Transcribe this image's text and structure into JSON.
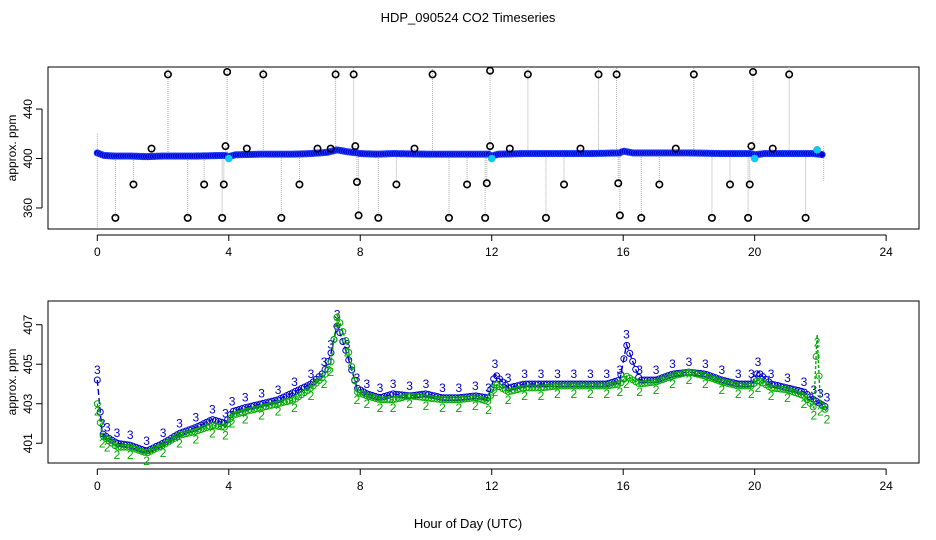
{
  "title": "HDP_090524  CO2 Timeseries",
  "xlabel": "Hour of Day (UTC)",
  "colors": {
    "series1": "#0000cc",
    "series2": "#00aa00",
    "outlier": "#000000",
    "highlight": "#00ccff",
    "whisker": "#aaaaaa"
  },
  "chart_data": [
    {
      "type": "scatter",
      "name": "top-panel",
      "ylabel": "approx. ppm",
      "xlim": [
        -1.5,
        25
      ],
      "ylim": [
        343,
        474
      ],
      "xticks": [
        0,
        4,
        8,
        12,
        16,
        20,
        24
      ],
      "yticks": [
        360,
        400,
        440
      ],
      "baseline": [
        [
          0.0,
          404.5
        ],
        [
          0.2,
          402.5
        ],
        [
          0.5,
          402
        ],
        [
          1.0,
          402
        ],
        [
          1.5,
          401.5
        ],
        [
          2.0,
          402
        ],
        [
          3.0,
          402
        ],
        [
          3.9,
          402.5
        ],
        [
          4.0,
          401.5
        ],
        [
          4.2,
          403
        ],
        [
          5.0,
          403.5
        ],
        [
          6.0,
          403.5
        ],
        [
          6.5,
          404
        ],
        [
          7.0,
          405
        ],
        [
          7.3,
          407
        ],
        [
          7.6,
          405.5
        ],
        [
          7.9,
          404.5
        ],
        [
          8.0,
          404
        ],
        [
          8.5,
          403.5
        ],
        [
          9.0,
          404
        ],
        [
          10.0,
          403.5
        ],
        [
          11.0,
          403.5
        ],
        [
          11.9,
          403.5
        ],
        [
          12.0,
          402
        ],
        [
          12.2,
          403.5
        ],
        [
          13.0,
          404
        ],
        [
          14.0,
          404
        ],
        [
          15.0,
          404
        ],
        [
          15.9,
          404.5
        ],
        [
          16.0,
          406
        ],
        [
          16.3,
          404.5
        ],
        [
          17.0,
          404.5
        ],
        [
          18.0,
          404.5
        ],
        [
          19.0,
          404
        ],
        [
          19.9,
          404
        ],
        [
          20.0,
          403
        ],
        [
          20.3,
          404
        ],
        [
          21.0,
          404
        ],
        [
          21.8,
          404
        ],
        [
          22.1,
          403
        ]
      ],
      "outliers_high": [
        [
          2.15,
          468
        ],
        [
          3.95,
          470
        ],
        [
          5.05,
          468
        ],
        [
          7.25,
          468
        ],
        [
          7.8,
          468
        ],
        [
          10.2,
          468
        ],
        [
          11.95,
          471
        ],
        [
          13.1,
          468
        ],
        [
          15.25,
          468
        ],
        [
          15.8,
          468
        ],
        [
          18.15,
          468
        ],
        [
          19.95,
          470
        ],
        [
          21.05,
          468
        ]
      ],
      "outliers_mid_high": [
        [
          1.65,
          408
        ],
        [
          3.9,
          410
        ],
        [
          4.55,
          408
        ],
        [
          6.7,
          408
        ],
        [
          7.1,
          408
        ],
        [
          7.85,
          410
        ],
        [
          9.65,
          408
        ],
        [
          11.95,
          410
        ],
        [
          12.55,
          408
        ],
        [
          14.7,
          408
        ],
        [
          17.6,
          408
        ],
        [
          19.9,
          410
        ],
        [
          20.55,
          408
        ]
      ],
      "outliers_mid_low": [
        [
          1.1,
          379
        ],
        [
          3.25,
          379
        ],
        [
          3.85,
          379
        ],
        [
          6.15,
          379
        ],
        [
          7.9,
          381
        ],
        [
          9.1,
          379
        ],
        [
          11.25,
          379
        ],
        [
          11.85,
          380
        ],
        [
          14.2,
          379
        ],
        [
          15.85,
          380
        ],
        [
          17.1,
          379
        ],
        [
          19.25,
          379
        ],
        [
          19.85,
          379
        ]
      ],
      "outliers_low": [
        [
          0.55,
          352
        ],
        [
          2.75,
          352
        ],
        [
          3.8,
          352
        ],
        [
          5.6,
          352
        ],
        [
          7.95,
          354
        ],
        [
          8.55,
          352
        ],
        [
          10.7,
          352
        ],
        [
          11.8,
          352
        ],
        [
          13.65,
          352
        ],
        [
          15.9,
          354
        ],
        [
          16.55,
          352
        ],
        [
          18.7,
          352
        ],
        [
          19.8,
          352
        ],
        [
          21.55,
          352
        ]
      ],
      "highlights": [
        [
          4.0,
          400
        ],
        [
          12.0,
          400
        ],
        [
          20.0,
          400
        ],
        [
          21.9,
          407
        ]
      ]
    },
    {
      "type": "line",
      "name": "bottom-panel",
      "ylabel": "approx. ppm",
      "xlim": [
        -1.5,
        25
      ],
      "ylim": [
        400.0,
        408.2
      ],
      "xticks": [
        0,
        4,
        8,
        12,
        16,
        20,
        24
      ],
      "yticks": [
        401,
        403,
        405,
        407
      ],
      "series": [
        {
          "name": "3",
          "color": "#0000cc",
          "x": [
            0.0,
            0.15,
            0.3,
            0.6,
            1.0,
            1.5,
            2.0,
            2.5,
            3.0,
            3.5,
            3.9,
            4.1,
            4.5,
            5.0,
            5.5,
            6.0,
            6.5,
            6.9,
            7.1,
            7.3,
            7.6,
            7.9,
            8.2,
            8.6,
            9.0,
            9.5,
            10.0,
            10.5,
            11.0,
            11.5,
            11.9,
            12.1,
            12.5,
            13.0,
            13.5,
            14.0,
            14.5,
            15.0,
            15.5,
            15.9,
            16.1,
            16.5,
            17.0,
            17.5,
            18.0,
            18.5,
            19.0,
            19.5,
            19.9,
            20.1,
            20.5,
            21.0,
            21.5,
            21.8,
            22.0,
            22.2
          ],
          "y": [
            404.2,
            401.5,
            401.3,
            401.0,
            400.9,
            400.6,
            401.0,
            401.5,
            401.8,
            402.2,
            402.0,
            402.6,
            402.8,
            403.0,
            403.2,
            403.6,
            404.0,
            404.6,
            405.5,
            407.0,
            405.5,
            403.8,
            403.5,
            403.3,
            403.5,
            403.4,
            403.5,
            403.3,
            403.3,
            403.4,
            403.3,
            404.5,
            403.8,
            404.0,
            404.0,
            404.0,
            404.0,
            404.0,
            404.0,
            404.2,
            406.0,
            404.2,
            404.2,
            404.5,
            404.6,
            404.5,
            404.2,
            404.0,
            404.0,
            404.6,
            404.0,
            403.8,
            403.6,
            403.2,
            403.0,
            402.8
          ]
        },
        {
          "name": "2",
          "color": "#00aa00",
          "x": [
            0.0,
            0.15,
            0.3,
            0.6,
            1.0,
            1.5,
            2.0,
            2.5,
            3.0,
            3.5,
            3.9,
            4.1,
            4.5,
            5.0,
            5.5,
            6.0,
            6.5,
            6.9,
            7.1,
            7.3,
            7.6,
            7.9,
            8.2,
            8.6,
            9.0,
            9.5,
            10.0,
            10.5,
            11.0,
            11.5,
            11.9,
            12.1,
            12.5,
            13.0,
            13.5,
            14.0,
            14.5,
            15.0,
            15.5,
            15.9,
            16.1,
            16.5,
            17.0,
            17.5,
            18.0,
            18.5,
            19.0,
            19.5,
            19.9,
            20.1,
            20.5,
            21.0,
            21.5,
            21.8,
            21.9,
            22.0,
            22.2
          ],
          "y": [
            403.0,
            401.4,
            401.2,
            400.8,
            400.8,
            400.5,
            400.9,
            401.4,
            401.6,
            401.9,
            401.8,
            402.4,
            402.6,
            402.8,
            403.0,
            403.2,
            403.8,
            404.4,
            405.0,
            407.5,
            406.0,
            403.6,
            403.4,
            403.2,
            403.2,
            403.4,
            403.3,
            403.2,
            403.2,
            403.3,
            403.1,
            404.0,
            403.6,
            403.8,
            403.8,
            403.9,
            403.9,
            403.9,
            403.9,
            404.0,
            404.4,
            404.0,
            404.1,
            404.4,
            404.6,
            404.4,
            404.1,
            403.9,
            403.9,
            404.2,
            403.8,
            403.7,
            403.4,
            402.8,
            406.5,
            403.0,
            402.6
          ]
        }
      ]
    }
  ]
}
